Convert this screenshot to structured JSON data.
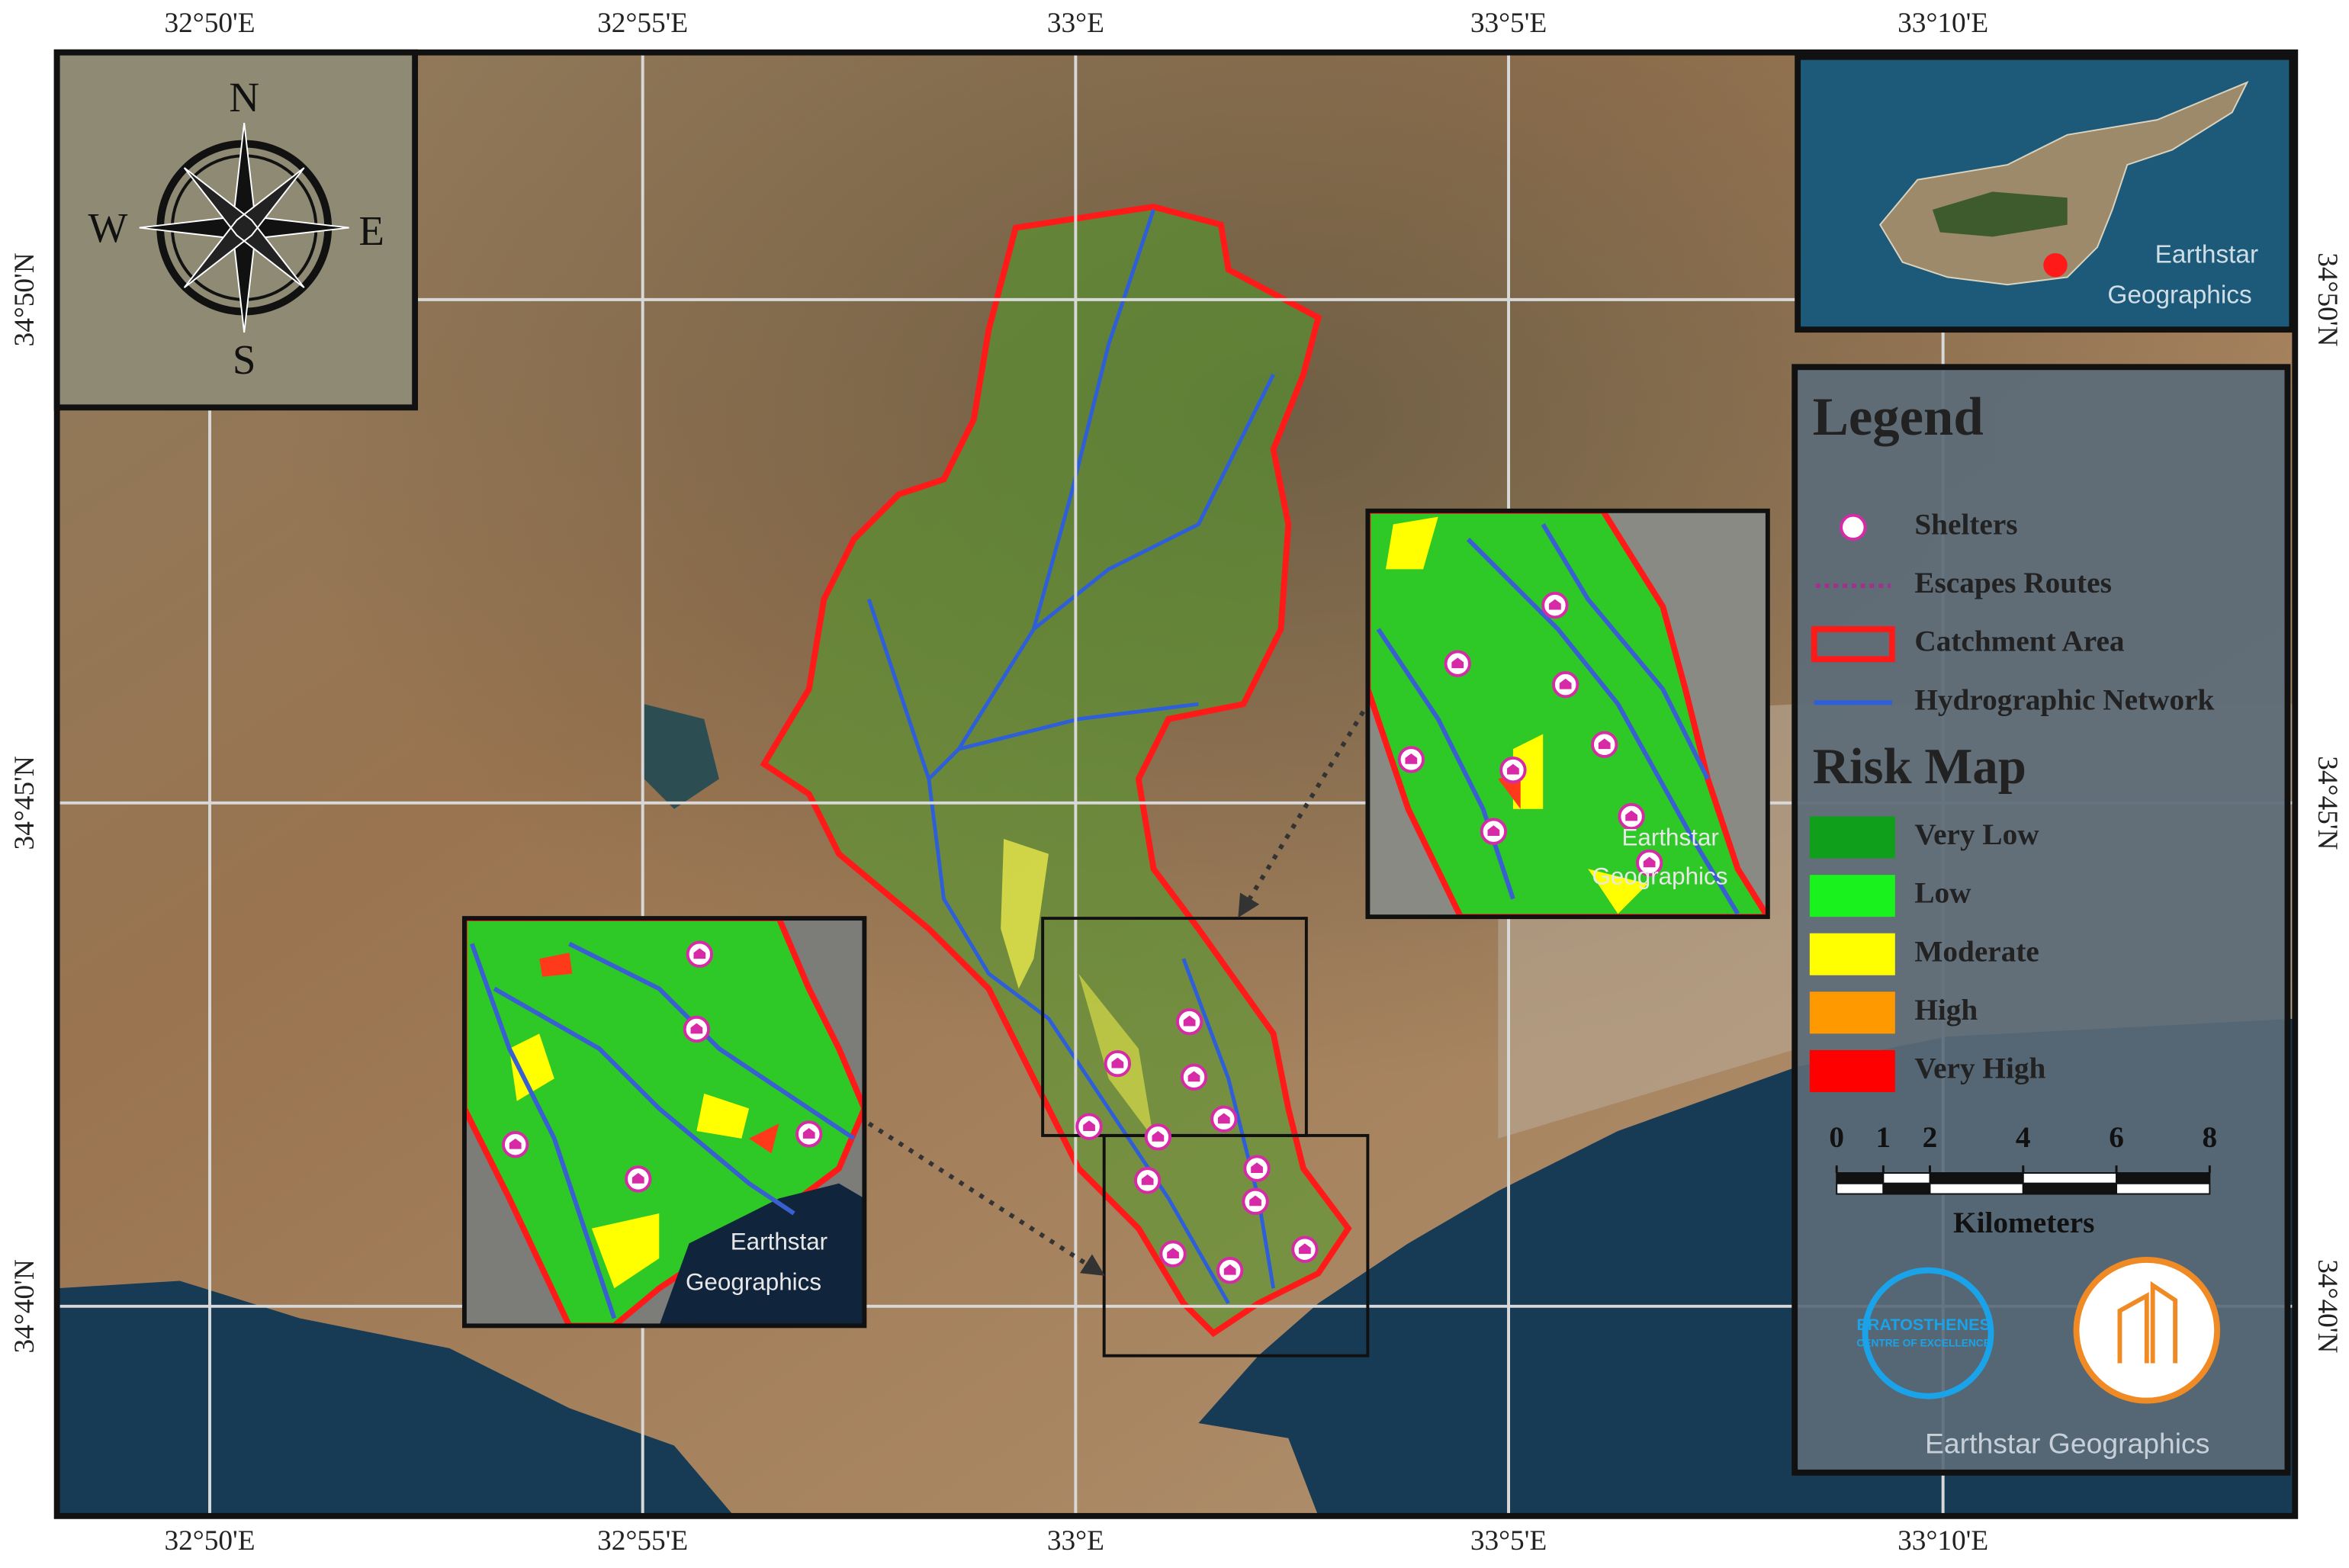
{
  "map": {
    "grid_labels": {
      "top": [
        "32°50'E",
        "32°55'E",
        "33°E",
        "33°5'E",
        "33°10'E"
      ],
      "bottom": [
        "32°50'E",
        "32°55'E",
        "33°E",
        "33°5'E",
        "33°10'E"
      ],
      "left": [
        "34°50'N",
        "34°45'N",
        "34°40'N"
      ],
      "right": [
        "34°50'N",
        "34°45'N",
        "34°40'N"
      ]
    },
    "compass": {
      "north": "N",
      "south": "S",
      "west": "W",
      "east": "E"
    },
    "overview_attribution": [
      "Earthstar",
      "Geographics"
    ],
    "left_inset_attribution": [
      "Earthstar",
      "Geographics"
    ],
    "right_inset_attribution": [
      "Earthstar",
      "Geographics"
    ],
    "legend": {
      "title": "Legend",
      "items": [
        "Shelters",
        "Escapes Routes",
        "Catchment Area",
        "Hydrographic Network"
      ],
      "risk_title": "Risk Map",
      "risk_classes": [
        {
          "label": "Very Low",
          "color": "#0f9f1a"
        },
        {
          "label": "Low",
          "color": "#19f21c"
        },
        {
          "label": "Moderate",
          "color": "#ffff00"
        },
        {
          "label": "High",
          "color": "#ff9900"
        },
        {
          "label": "Very High",
          "color": "#ff0000"
        }
      ]
    },
    "scale_bar": {
      "ticks": [
        0,
        1,
        2,
        4,
        6,
        8
      ],
      "unit": "Kilometers"
    },
    "logo": [
      "ERATOSTHENES",
      "CENTRE OF EXCELLENCE"
    ],
    "legend_attribution": "Earthstar Geographics"
  }
}
